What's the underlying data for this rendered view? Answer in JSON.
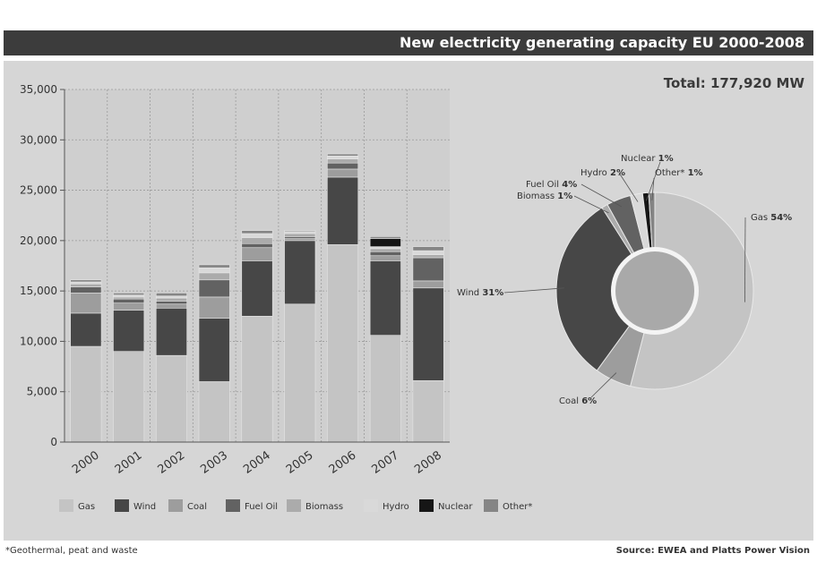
{
  "colors": {
    "Gas": "#c4c4c4",
    "Wind": "#474747",
    "Coal": "#9d9d9d",
    "Fuel Oil": "#626262",
    "Biomass": "#ababab",
    "Hydro": "#d9d9d9",
    "Nuclear": "#161616",
    "Other*": "#858585"
  },
  "chart_data": [
    {
      "type": "bar",
      "stacked": true,
      "title": "New electricity generating capacity EU 2000-2008",
      "categories": [
        "2000",
        "2001",
        "2002",
        "2003",
        "2004",
        "2005",
        "2006",
        "2007",
        "2008"
      ],
      "ylim": [
        0,
        35000
      ],
      "yticks": [
        0,
        5000,
        10000,
        15000,
        20000,
        25000,
        30000,
        35000
      ],
      "ytick_labels": [
        "0",
        "5,000",
        "10,000",
        "15,000",
        "20,000",
        "25,000",
        "30,000",
        "35,000"
      ],
      "grid": true,
      "legend_position": "bottom",
      "series": [
        {
          "name": "Gas",
          "values": [
            9500,
            9000,
            8600,
            6000,
            12500,
            13700,
            19600,
            10600,
            6100
          ]
        },
        {
          "name": "Wind",
          "values": [
            3300,
            4100,
            4700,
            6300,
            5500,
            6300,
            6700,
            7400,
            9200
          ]
        },
        {
          "name": "Coal",
          "values": [
            2000,
            700,
            400,
            2100,
            1300,
            200,
            800,
            500,
            700
          ]
        },
        {
          "name": "Fuel Oil",
          "values": [
            600,
            400,
            300,
            1700,
            400,
            200,
            600,
            400,
            2300
          ]
        },
        {
          "name": "Biomass",
          "values": [
            300,
            200,
            300,
            700,
            600,
            300,
            400,
            300,
            300
          ]
        },
        {
          "name": "Hydro",
          "values": [
            200,
            200,
            200,
            500,
            400,
            200,
            300,
            200,
            400
          ]
        },
        {
          "name": "Nuclear",
          "values": [
            0,
            0,
            0,
            0,
            0,
            0,
            0,
            800,
            0
          ]
        },
        {
          "name": "Other*",
          "values": [
            200,
            200,
            300,
            300,
            300,
            100,
            200,
            200,
            400
          ]
        }
      ]
    },
    {
      "type": "pie",
      "donut": true,
      "total_label": "Total: 177,920 MW",
      "slices": [
        {
          "name": "Gas",
          "value": 54,
          "label": "Gas",
          "pct": "54%"
        },
        {
          "name": "Coal",
          "value": 6,
          "label": "Coal",
          "pct": "6%"
        },
        {
          "name": "Wind",
          "value": 31,
          "label": "Wind",
          "pct": "31%"
        },
        {
          "name": "Biomass",
          "value": 1,
          "label": "Biomass",
          "pct": "1%"
        },
        {
          "name": "Fuel Oil",
          "value": 4,
          "label": "Fuel Oil",
          "pct": "4%"
        },
        {
          "name": "Hydro",
          "value": 2,
          "label": "Hydro",
          "pct": "2%"
        },
        {
          "name": "Nuclear",
          "value": 1,
          "label": "Nuclear",
          "pct": "1%"
        },
        {
          "name": "Other*",
          "value": 1,
          "label": "Other*",
          "pct": "1%"
        }
      ]
    }
  ],
  "footnote": "*Geothermal, peat and waste",
  "source": "Source: EWEA and Platts Power Vision"
}
